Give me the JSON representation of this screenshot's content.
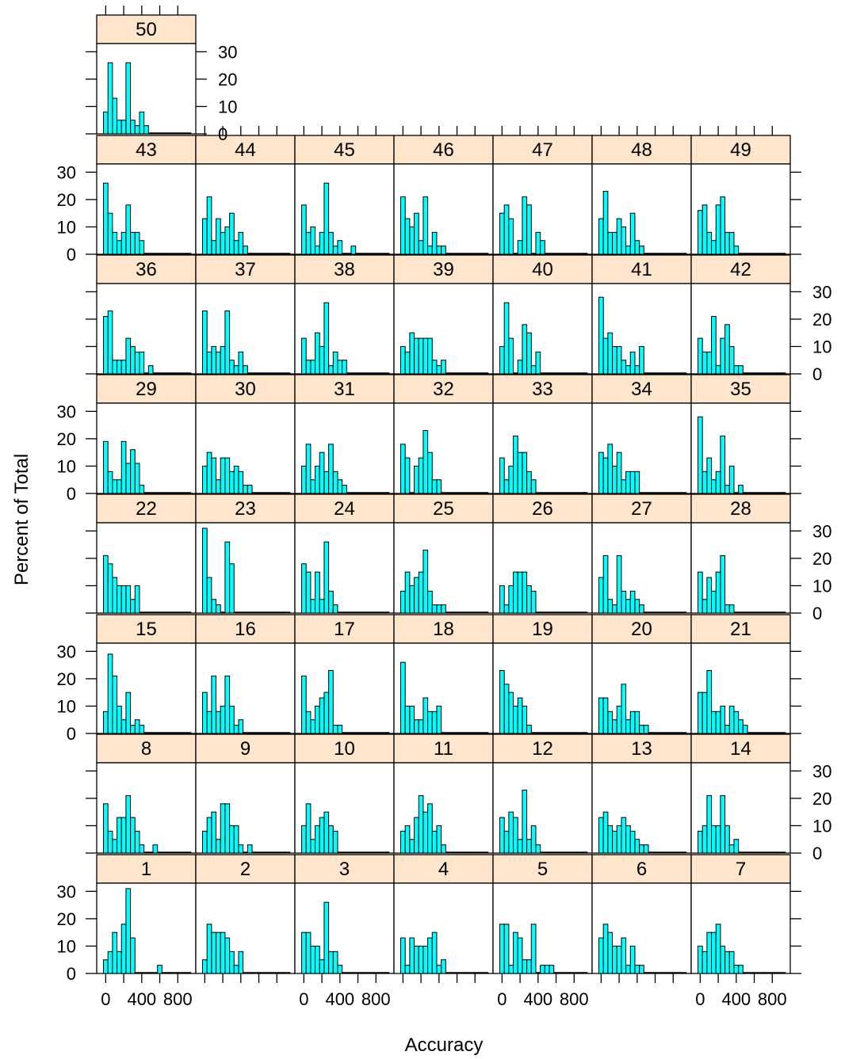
{
  "chart_data": {
    "type": "bar",
    "subtype": "lattice-histogram",
    "xlabel": "Accuracy",
    "ylabel": "Percent of Total",
    "x_ticks": [
      "0",
      "400",
      "800"
    ],
    "y_ticks": [
      "0",
      "10",
      "20",
      "30"
    ],
    "xlim": [
      -100,
      1000
    ],
    "ylim": [
      0,
      33
    ],
    "bin_start": -25,
    "bin_width": 50,
    "colors": {
      "bar": "#00FFFF",
      "strip": "#FFE5CC",
      "stroke": "#000000"
    },
    "panels": [
      {
        "label": "1",
        "values": [
          5,
          8,
          15,
          8,
          18,
          31,
          13,
          0,
          0,
          0,
          0,
          0,
          3
        ]
      },
      {
        "label": "2",
        "values": [
          5,
          18,
          15,
          15,
          15,
          13,
          8,
          3,
          8
        ]
      },
      {
        "label": "3",
        "values": [
          15,
          15,
          10,
          10,
          5,
          26,
          8,
          8,
          3
        ]
      },
      {
        "label": "4",
        "values": [
          13,
          3,
          13,
          10,
          10,
          10,
          13,
          15,
          3,
          5
        ]
      },
      {
        "label": "5",
        "values": [
          18,
          18,
          3,
          15,
          13,
          5,
          5,
          18,
          0,
          3,
          3,
          3
        ]
      },
      {
        "label": "6",
        "values": [
          13,
          18,
          15,
          10,
          10,
          13,
          3,
          10,
          3,
          3
        ]
      },
      {
        "label": "7",
        "values": [
          10,
          8,
          15,
          15,
          18,
          10,
          8,
          8,
          3,
          3
        ]
      },
      {
        "label": "8",
        "values": [
          18,
          8,
          5,
          13,
          13,
          21,
          13,
          8,
          3,
          0,
          0,
          3
        ]
      },
      {
        "label": "9",
        "values": [
          8,
          13,
          15,
          5,
          18,
          18,
          10,
          10,
          3,
          0,
          3
        ]
      },
      {
        "label": "10",
        "values": [
          10,
          18,
          5,
          10,
          13,
          15,
          10,
          8
        ]
      },
      {
        "label": "11",
        "values": [
          8,
          10,
          5,
          13,
          21,
          15,
          18,
          8,
          10,
          3
        ]
      },
      {
        "label": "12",
        "values": [
          13,
          8,
          15,
          13,
          5,
          23,
          5,
          10,
          3
        ]
      },
      {
        "label": "13",
        "values": [
          13,
          15,
          10,
          8,
          10,
          13,
          10,
          8,
          5,
          3,
          3
        ]
      },
      {
        "label": "14",
        "values": [
          8,
          10,
          21,
          10,
          10,
          21,
          10,
          3,
          5
        ]
      },
      {
        "label": "15",
        "values": [
          8,
          29,
          21,
          10,
          5,
          15,
          3,
          5,
          3
        ]
      },
      {
        "label": "16",
        "values": [
          15,
          8,
          21,
          8,
          10,
          21,
          10,
          3,
          5
        ]
      },
      {
        "label": "17",
        "values": [
          21,
          8,
          5,
          10,
          13,
          15,
          23,
          3,
          3
        ]
      },
      {
        "label": "18",
        "values": [
          26,
          10,
          10,
          5,
          5,
          13,
          8,
          8,
          10
        ]
      },
      {
        "label": "19",
        "values": [
          23,
          18,
          15,
          10,
          13,
          10,
          3
        ]
      },
      {
        "label": "20",
        "values": [
          13,
          13,
          8,
          5,
          10,
          18,
          5,
          8,
          8,
          3,
          3
        ]
      },
      {
        "label": "21",
        "values": [
          15,
          15,
          23,
          8,
          8,
          10,
          3,
          10,
          8,
          5,
          3
        ]
      },
      {
        "label": "22",
        "values": [
          21,
          18,
          13,
          10,
          10,
          10,
          5,
          10
        ]
      },
      {
        "label": "23",
        "values": [
          31,
          13,
          5,
          3,
          0,
          26,
          18
        ]
      },
      {
        "label": "24",
        "values": [
          18,
          15,
          5,
          15,
          5,
          26,
          8,
          3
        ]
      },
      {
        "label": "25",
        "values": [
          8,
          15,
          10,
          13,
          15,
          23,
          8,
          3,
          3,
          3
        ]
      },
      {
        "label": "26",
        "values": [
          10,
          3,
          10,
          15,
          15,
          15,
          10,
          8
        ]
      },
      {
        "label": "27",
        "values": [
          13,
          21,
          5,
          3,
          21,
          8,
          5,
          8,
          5,
          3
        ]
      },
      {
        "label": "28",
        "values": [
          15,
          5,
          13,
          8,
          15,
          21,
          3,
          3
        ]
      },
      {
        "label": "29",
        "values": [
          19,
          8,
          5,
          5,
          19,
          11,
          16,
          11,
          3
        ]
      },
      {
        "label": "30",
        "values": [
          10,
          15,
          13,
          5,
          13,
          13,
          8,
          10,
          8,
          3,
          3
        ]
      },
      {
        "label": "31",
        "values": [
          10,
          18,
          5,
          10,
          15,
          8,
          18,
          8,
          5,
          3
        ]
      },
      {
        "label": "32",
        "values": [
          18,
          13,
          0,
          10,
          13,
          23,
          15,
          5,
          5
        ]
      },
      {
        "label": "33",
        "values": [
          13,
          5,
          10,
          21,
          15,
          15,
          8,
          5
        ]
      },
      {
        "label": "34",
        "values": [
          15,
          13,
          18,
          10,
          15,
          5,
          8,
          8,
          8
        ]
      },
      {
        "label": "35",
        "values": [
          28,
          8,
          13,
          5,
          8,
          21,
          3,
          10,
          0,
          3
        ]
      },
      {
        "label": "36",
        "values": [
          21,
          23,
          5,
          5,
          5,
          13,
          10,
          8,
          8,
          0,
          3
        ]
      },
      {
        "label": "37",
        "values": [
          23,
          8,
          10,
          8,
          10,
          23,
          5,
          3,
          8,
          3
        ]
      },
      {
        "label": "38",
        "values": [
          13,
          5,
          5,
          15,
          10,
          26,
          3,
          8,
          5,
          5
        ]
      },
      {
        "label": "39",
        "values": [
          10,
          8,
          15,
          13,
          13,
          13,
          13,
          5,
          3,
          5
        ]
      },
      {
        "label": "40",
        "values": [
          10,
          26,
          13,
          0,
          5,
          18,
          15,
          3,
          8
        ]
      },
      {
        "label": "41",
        "values": [
          28,
          13,
          15,
          10,
          10,
          5,
          3,
          8,
          3,
          10
        ]
      },
      {
        "label": "42",
        "values": [
          13,
          8,
          8,
          21,
          3,
          13,
          18,
          10,
          3,
          3
        ]
      },
      {
        "label": "43",
        "values": [
          26,
          15,
          8,
          5,
          8,
          18,
          8,
          8,
          5
        ]
      },
      {
        "label": "44",
        "values": [
          13,
          21,
          5,
          13,
          8,
          10,
          15,
          5,
          8,
          3
        ]
      },
      {
        "label": "45",
        "values": [
          18,
          8,
          10,
          3,
          8,
          26,
          8,
          3,
          5,
          0,
          0,
          3
        ]
      },
      {
        "label": "46",
        "values": [
          21,
          13,
          10,
          15,
          5,
          21,
          3,
          8,
          3,
          3
        ]
      },
      {
        "label": "47",
        "values": [
          15,
          18,
          13,
          0,
          5,
          21,
          18,
          0,
          8,
          5
        ]
      },
      {
        "label": "48",
        "values": [
          13,
          23,
          8,
          8,
          13,
          10,
          3,
          15,
          5,
          3
        ]
      },
      {
        "label": "49",
        "values": [
          16,
          18,
          8,
          5,
          18,
          21,
          8,
          8,
          3
        ]
      },
      {
        "label": "50",
        "values": [
          8,
          26,
          13,
          5,
          5,
          26,
          5,
          3,
          8,
          3
        ]
      }
    ]
  }
}
